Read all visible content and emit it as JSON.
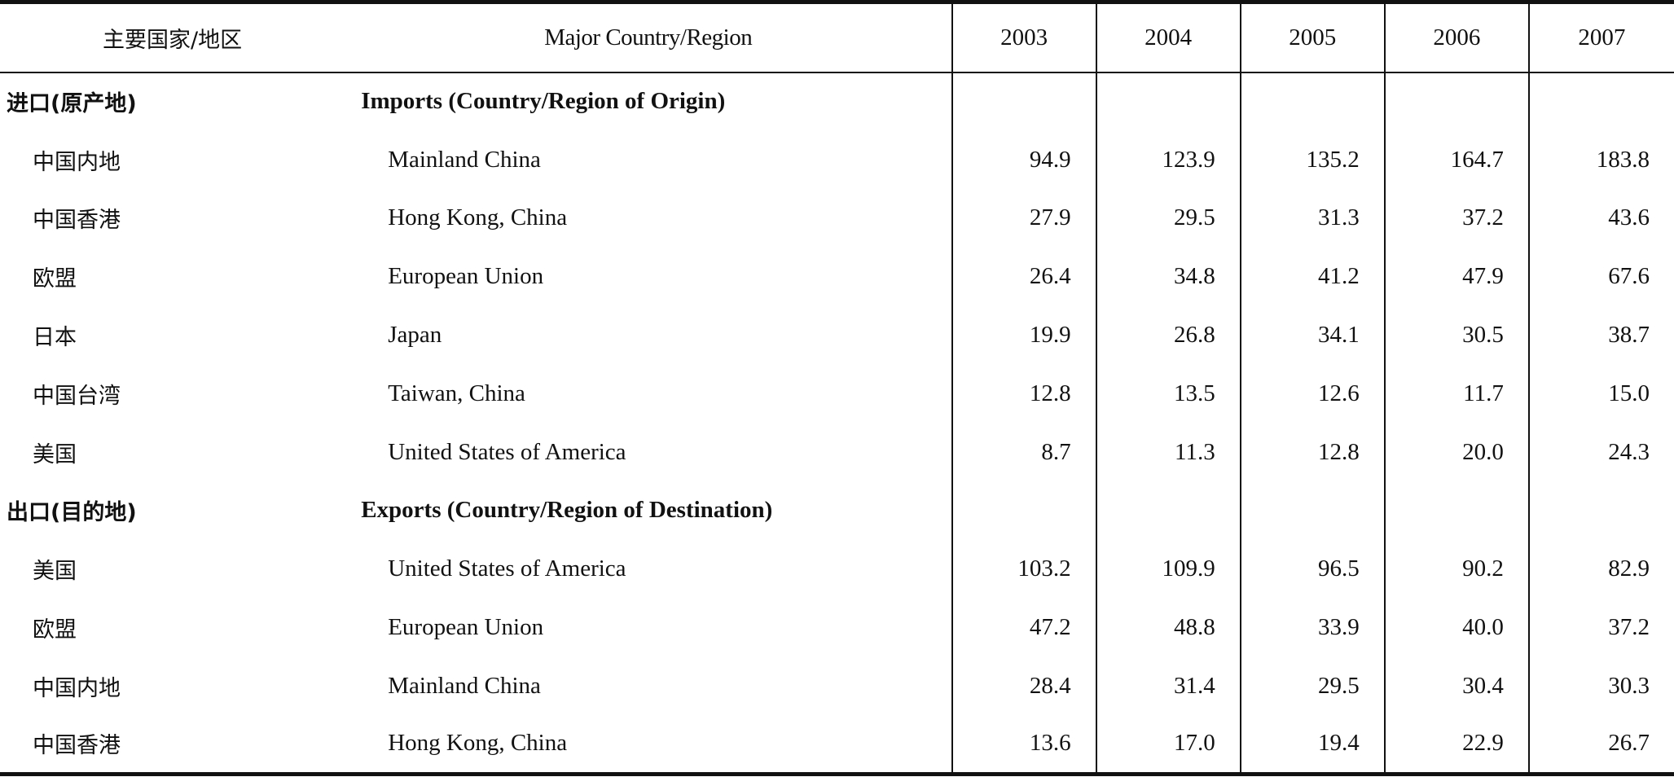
{
  "table": {
    "headers": {
      "cn": "主要国家/地区",
      "en": "Major Country/Region",
      "years": [
        "2003",
        "2004",
        "2005",
        "2006",
        "2007"
      ]
    },
    "rows": [
      {
        "type": "group",
        "cn": "进口(原产地)",
        "en": "Imports (Country/Region of Origin)",
        "values": []
      },
      {
        "type": "item",
        "cn": "中国内地",
        "en": "Mainland China",
        "values": [
          "94.9",
          "123.9",
          "135.2",
          "164.7",
          "183.8"
        ]
      },
      {
        "type": "item",
        "cn": "中国香港",
        "en": "Hong Kong, China",
        "values": [
          "27.9",
          "29.5",
          "31.3",
          "37.2",
          "43.6"
        ]
      },
      {
        "type": "item",
        "cn": "欧盟",
        "en": "European Union",
        "values": [
          "26.4",
          "34.8",
          "41.2",
          "47.9",
          "67.6"
        ]
      },
      {
        "type": "item",
        "cn": "日本",
        "en": "Japan",
        "values": [
          "19.9",
          "26.8",
          "34.1",
          "30.5",
          "38.7"
        ]
      },
      {
        "type": "item",
        "cn": "中国台湾",
        "en": "Taiwan, China",
        "values": [
          "12.8",
          "13.5",
          "12.6",
          "11.7",
          "15.0"
        ]
      },
      {
        "type": "item",
        "cn": "美国",
        "en": "United States of America",
        "values": [
          "8.7",
          "11.3",
          "12.8",
          "20.0",
          "24.3"
        ]
      },
      {
        "type": "group",
        "cn": "出口(目的地)",
        "en": "Exports (Country/Region of Destination)",
        "values": []
      },
      {
        "type": "item",
        "cn": "美国",
        "en": "United States of America",
        "values": [
          "103.2",
          "109.9",
          "96.5",
          "90.2",
          "82.9"
        ]
      },
      {
        "type": "item",
        "cn": "欧盟",
        "en": "European Union",
        "values": [
          "47.2",
          "48.8",
          "33.9",
          "40.0",
          "37.2"
        ]
      },
      {
        "type": "item",
        "cn": "中国内地",
        "en": "Mainland China",
        "values": [
          "28.4",
          "31.4",
          "29.5",
          "30.4",
          "30.3"
        ]
      },
      {
        "type": "item",
        "cn": "中国香港",
        "en": "Hong Kong, China",
        "values": [
          "13.6",
          "17.0",
          "19.4",
          "22.9",
          "26.7"
        ]
      }
    ]
  }
}
